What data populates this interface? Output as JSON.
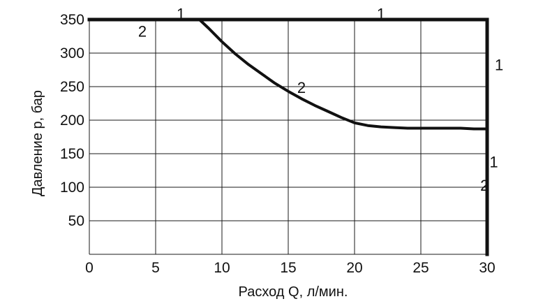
{
  "chart_data": {
    "type": "line",
    "xlabel": "Расход Q, л/мин.",
    "ylabel": "Давление р, бар",
    "xlim": [
      0,
      30
    ],
    "ylim": [
      0,
      350
    ],
    "x_ticks": [
      "0",
      "5",
      "10",
      "15",
      "20",
      "25",
      "30"
    ],
    "y_ticks": [
      "50",
      "100",
      "150",
      "200",
      "250",
      "300",
      "350"
    ],
    "grid": true,
    "legend": "none",
    "series": [
      {
        "label": "1",
        "x": [
          0,
          30,
          30
        ],
        "y": [
          350,
          350,
          0
        ]
      },
      {
        "label": "2",
        "x": [
          0,
          8.3,
          9,
          10,
          11,
          12,
          13,
          14,
          15,
          16,
          17,
          18,
          19,
          20,
          21,
          22,
          23,
          24,
          25,
          26,
          27,
          28,
          29,
          30,
          30
        ],
        "y": [
          350,
          350,
          337,
          317,
          299,
          283,
          269,
          255,
          243,
          232,
          222,
          213,
          204,
          196,
          192,
          190,
          189,
          188,
          188,
          188,
          188,
          188,
          187,
          187,
          0
        ]
      }
    ],
    "annotations": [
      {
        "text": "1",
        "x": 6.9,
        "y": 359
      },
      {
        "text": "1",
        "x": 22.0,
        "y": 359
      },
      {
        "text": "1",
        "x": 30.9,
        "y": 283
      },
      {
        "text": "1",
        "x": 30.5,
        "y": 138
      },
      {
        "text": "2",
        "x": 4.0,
        "y": 333
      },
      {
        "text": "2",
        "x": 16.0,
        "y": 249
      },
      {
        "text": "2",
        "x": 29.8,
        "y": 103
      }
    ]
  }
}
